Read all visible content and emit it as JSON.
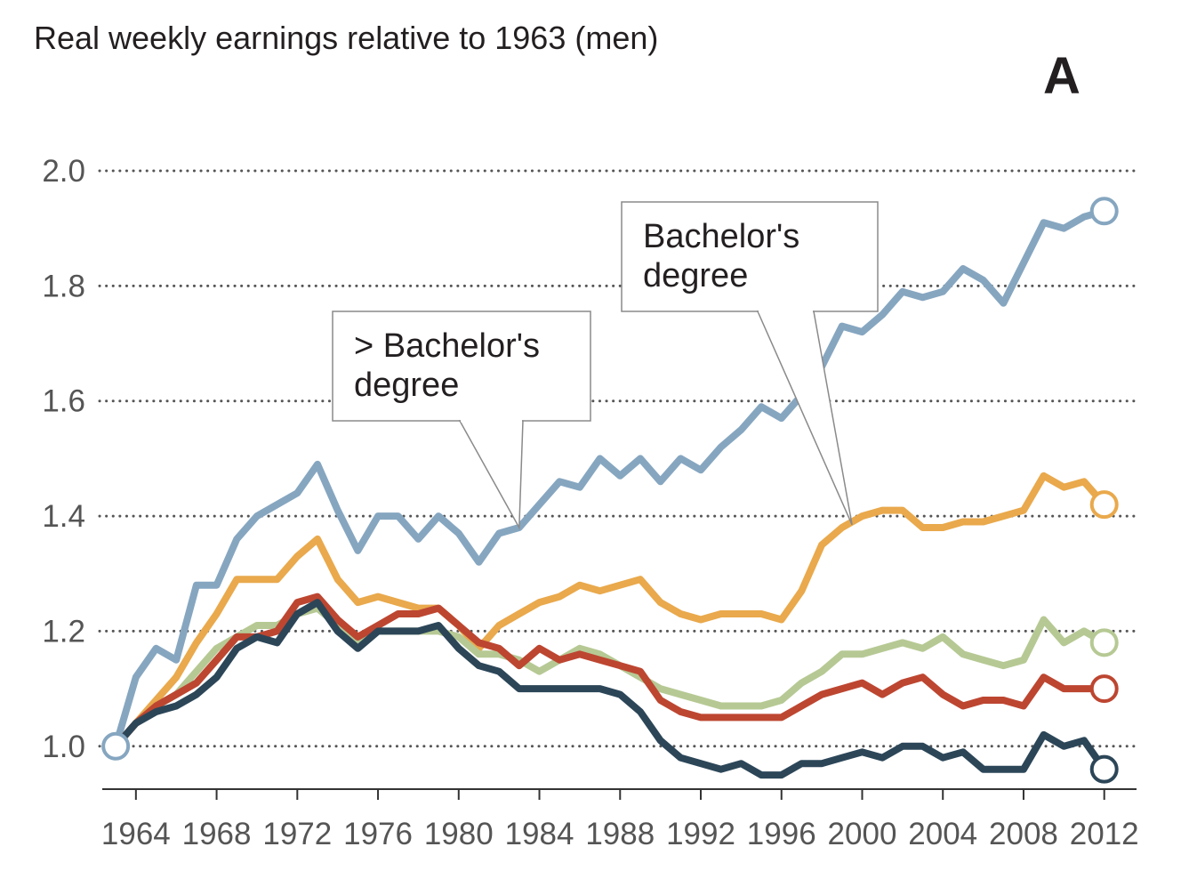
{
  "title": "Real weekly earnings relative to 1963 (men)",
  "panel_label": "A",
  "callouts": {
    "grad": [
      "> Bachelor's",
      "degree"
    ],
    "bach": [
      "Bachelor's",
      "degree"
    ]
  },
  "colors": {
    "grad": "#86a6c0",
    "bach": "#e9a94c",
    "some_college": "#b6c994",
    "hs": "#bd4631",
    "dropout": "#2c4658",
    "grid": "#555555",
    "axis": "#333333"
  },
  "chart_data": {
    "type": "line",
    "title": "Real weekly earnings relative to 1963 (men)",
    "xlabel": "",
    "ylabel": "",
    "xlim": [
      1962.2,
      2013.6
    ],
    "ylim": [
      0.91,
      2.0
    ],
    "y_ticks": [
      1.0,
      1.2,
      1.4,
      1.6,
      1.8,
      2.0
    ],
    "y_tick_labels": [
      "1.0",
      "1.2",
      "1.4",
      "1.6",
      "1.8",
      "2.0"
    ],
    "x_ticks": [
      1964,
      1968,
      1972,
      1976,
      1980,
      1984,
      1988,
      1992,
      1996,
      2000,
      2004,
      2008,
      2012
    ],
    "x_tick_labels": [
      "1964",
      "1968",
      "1972",
      "1976",
      "1980",
      "1984",
      "1988",
      "1992",
      "1996",
      "2000",
      "2004",
      "2008",
      "2012"
    ],
    "grid": "horizontal dotted",
    "x": [
      1963,
      1964,
      1965,
      1966,
      1967,
      1968,
      1969,
      1970,
      1971,
      1972,
      1973,
      1974,
      1975,
      1976,
      1977,
      1978,
      1979,
      1980,
      1981,
      1982,
      1983,
      1984,
      1985,
      1986,
      1987,
      1988,
      1989,
      1990,
      1991,
      1992,
      1993,
      1994,
      1995,
      1996,
      1997,
      1998,
      1999,
      2000,
      2001,
      2002,
      2003,
      2004,
      2005,
      2006,
      2007,
      2008,
      2009,
      2010,
      2011,
      2012
    ],
    "series": [
      {
        "key": "grad",
        "values": [
          1.0,
          1.12,
          1.17,
          1.15,
          1.28,
          1.28,
          1.36,
          1.4,
          1.42,
          1.44,
          1.49,
          1.41,
          1.34,
          1.4,
          1.4,
          1.36,
          1.4,
          1.37,
          1.32,
          1.37,
          1.38,
          1.42,
          1.46,
          1.45,
          1.5,
          1.47,
          1.5,
          1.46,
          1.5,
          1.48,
          1.52,
          1.55,
          1.59,
          1.57,
          1.61,
          1.66,
          1.73,
          1.72,
          1.75,
          1.79,
          1.78,
          1.79,
          1.83,
          1.81,
          1.77,
          1.84,
          1.91,
          1.9,
          1.92,
          1.93
        ]
      },
      {
        "key": "bach",
        "values": [
          1.0,
          1.04,
          1.08,
          1.12,
          1.18,
          1.23,
          1.29,
          1.29,
          1.29,
          1.33,
          1.36,
          1.29,
          1.25,
          1.26,
          1.25,
          1.24,
          1.24,
          1.21,
          1.17,
          1.21,
          1.23,
          1.25,
          1.26,
          1.28,
          1.27,
          1.28,
          1.29,
          1.25,
          1.23,
          1.22,
          1.23,
          1.23,
          1.23,
          1.22,
          1.27,
          1.35,
          1.38,
          1.4,
          1.41,
          1.41,
          1.38,
          1.38,
          1.39,
          1.39,
          1.4,
          1.41,
          1.47,
          1.45,
          1.46,
          1.42
        ]
      },
      {
        "key": "some_college",
        "values": [
          1.0,
          1.04,
          1.07,
          1.09,
          1.13,
          1.17,
          1.19,
          1.21,
          1.21,
          1.23,
          1.24,
          1.21,
          1.18,
          1.2,
          1.2,
          1.2,
          1.2,
          1.19,
          1.16,
          1.16,
          1.15,
          1.13,
          1.15,
          1.17,
          1.16,
          1.14,
          1.12,
          1.1,
          1.09,
          1.08,
          1.07,
          1.07,
          1.07,
          1.08,
          1.11,
          1.13,
          1.16,
          1.16,
          1.17,
          1.18,
          1.17,
          1.19,
          1.16,
          1.15,
          1.14,
          1.15,
          1.22,
          1.18,
          1.2,
          1.18
        ]
      },
      {
        "key": "hs",
        "values": [
          1.0,
          1.04,
          1.07,
          1.09,
          1.11,
          1.15,
          1.19,
          1.19,
          1.2,
          1.25,
          1.26,
          1.22,
          1.19,
          1.21,
          1.23,
          1.23,
          1.24,
          1.21,
          1.18,
          1.17,
          1.14,
          1.17,
          1.15,
          1.16,
          1.15,
          1.14,
          1.13,
          1.08,
          1.06,
          1.05,
          1.05,
          1.05,
          1.05,
          1.05,
          1.07,
          1.09,
          1.1,
          1.11,
          1.09,
          1.11,
          1.12,
          1.09,
          1.07,
          1.08,
          1.08,
          1.07,
          1.12,
          1.1,
          1.1,
          1.1
        ]
      },
      {
        "key": "dropout",
        "values": [
          1.0,
          1.04,
          1.06,
          1.07,
          1.09,
          1.12,
          1.17,
          1.19,
          1.18,
          1.23,
          1.25,
          1.2,
          1.17,
          1.2,
          1.2,
          1.2,
          1.21,
          1.17,
          1.14,
          1.13,
          1.1,
          1.1,
          1.1,
          1.1,
          1.1,
          1.09,
          1.06,
          1.01,
          0.98,
          0.97,
          0.96,
          0.97,
          0.95,
          0.95,
          0.97,
          0.97,
          0.98,
          0.99,
          0.98,
          1.0,
          1.0,
          0.98,
          0.99,
          0.96,
          0.96,
          0.96,
          1.02,
          1.0,
          1.01,
          0.96
        ]
      }
    ]
  }
}
